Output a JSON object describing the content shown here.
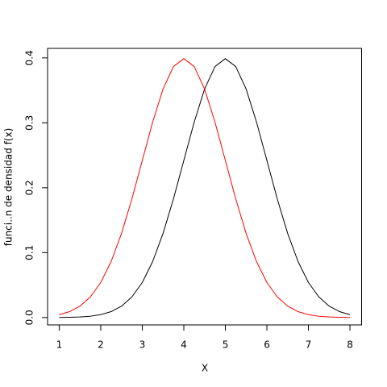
{
  "chart_data": {
    "type": "line",
    "xlabel": "X",
    "ylabel": "funci..n de densidad f(x)",
    "x": [
      1,
      1.25,
      1.5,
      1.75,
      2,
      2.25,
      2.5,
      2.75,
      3,
      3.25,
      3.5,
      3.75,
      4,
      4.25,
      4.5,
      4.75,
      5,
      5.25,
      5.5,
      5.75,
      6,
      6.25,
      6.5,
      6.75,
      7,
      7.25,
      7.5,
      7.75,
      8
    ],
    "series": [
      {
        "color": "#000000",
        "values": [
          0.00013,
          0.00035,
          0.00087,
          0.00203,
          0.00443,
          0.00909,
          0.01753,
          0.03174,
          0.05399,
          0.08628,
          0.12952,
          0.18265,
          0.24197,
          0.30114,
          0.35207,
          0.38667,
          0.39894,
          0.38667,
          0.35207,
          0.30114,
          0.24197,
          0.18265,
          0.12952,
          0.08628,
          0.05399,
          0.03174,
          0.01753,
          0.00909,
          0.00443
        ]
      },
      {
        "color": "#ff0000",
        "values": [
          0.00443,
          0.00909,
          0.01753,
          0.03174,
          0.05399,
          0.08628,
          0.12952,
          0.18265,
          0.24197,
          0.30114,
          0.35207,
          0.38667,
          0.39894,
          0.38667,
          0.35207,
          0.30114,
          0.24197,
          0.18265,
          0.12952,
          0.08628,
          0.05399,
          0.03174,
          0.01753,
          0.00909,
          0.00443,
          0.00203,
          0.00087,
          0.00035,
          0.00013
        ]
      }
    ],
    "xlim": [
      0.72,
      8.28
    ],
    "xticks": [
      1,
      2,
      3,
      4,
      5,
      6,
      7,
      8
    ],
    "ylim": [
      -0.0114,
      0.4147
    ],
    "yticks": [
      {
        "value": 0,
        "label": "0.0"
      },
      0.1,
      0.2,
      0.3,
      0.4
    ]
  }
}
